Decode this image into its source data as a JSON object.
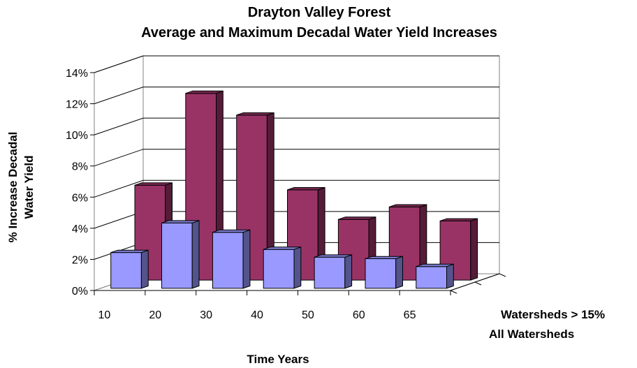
{
  "chart_data": {
    "type": "bar",
    "style": "3d-clustered-depth",
    "title": [
      "Drayton Valley Forest",
      "Average and Maximum Decadal Water Yield Increases"
    ],
    "xlabel": "Time Years",
    "ylabel": [
      "% Increase Decadal",
      "Water Yield"
    ],
    "categories": [
      "10",
      "20",
      "30",
      "40",
      "50",
      "60",
      "65"
    ],
    "yticks": [
      "0%",
      "2%",
      "4%",
      "6%",
      "8%",
      "10%",
      "12%",
      "14%"
    ],
    "ylim": [
      0,
      14
    ],
    "grid": true,
    "series": [
      {
        "name": "Watersheds > 15%",
        "color": "#993366",
        "values": [
          6.1,
          12.0,
          10.6,
          5.8,
          3.9,
          4.7,
          3.8
        ]
      },
      {
        "name": "All Watersheds",
        "color": "#9999ff",
        "values": [
          2.3,
          4.2,
          3.6,
          2.5,
          2.0,
          1.9,
          1.4
        ]
      }
    ]
  }
}
